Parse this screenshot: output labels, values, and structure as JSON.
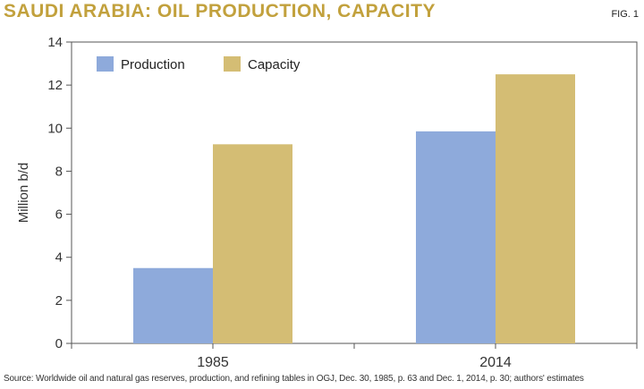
{
  "header": {
    "title": "SAUDI ARABIA: OIL PRODUCTION, CAPACITY",
    "fig_label": "FIG. 1"
  },
  "footer": {
    "source": "Source: Worldwide oil and natural gas reserves, production, and refining tables in OGJ, Dec. 30, 1985, p. 63 and Dec. 1, 2014, p. 30; authors' estimates"
  },
  "colors": {
    "production": "#8eaadb",
    "capacity": "#d4bd74",
    "title": "#c2a13d"
  },
  "chart_data": {
    "type": "bar",
    "title": "SAUDI ARABIA: OIL PRODUCTION, CAPACITY",
    "xlabel": "",
    "ylabel": "Million b/d",
    "categories": [
      "1985",
      "2014"
    ],
    "series": [
      {
        "name": "Production",
        "values": [
          3.5,
          9.85
        ]
      },
      {
        "name": "Capacity",
        "values": [
          9.25,
          12.5
        ]
      }
    ],
    "ylim": [
      0,
      14
    ],
    "yticks": [
      0,
      2,
      4,
      6,
      8,
      10,
      12,
      14
    ],
    "grid": false,
    "legend": "top-left"
  }
}
